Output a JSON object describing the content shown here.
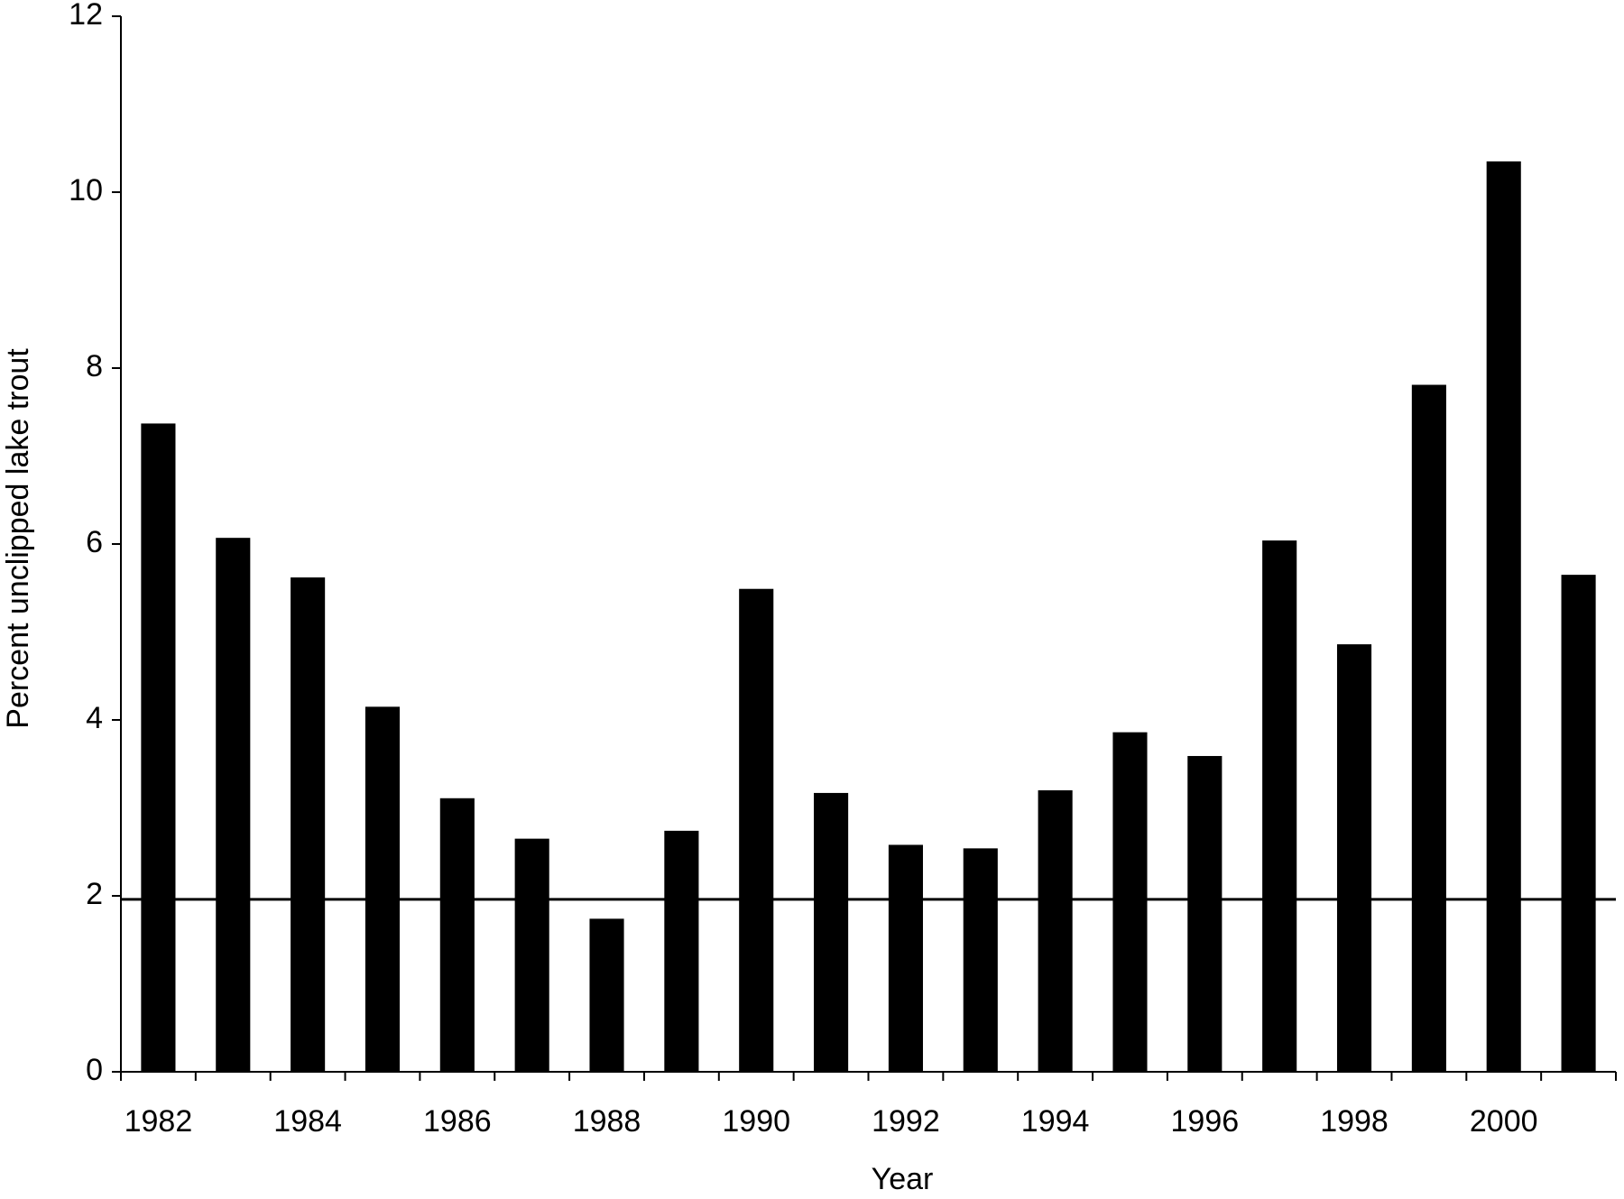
{
  "chart_data": {
    "type": "bar",
    "x_label": "Year",
    "y_label": "Percent unclipped lake trout",
    "categories": [
      "1982",
      null,
      "1984",
      null,
      "1986",
      null,
      "1988",
      null,
      "1990",
      null,
      "1992",
      null,
      "1994",
      null,
      "1996",
      null,
      "1998",
      null,
      "2000",
      null
    ],
    "values": [
      7.37,
      6.07,
      5.62,
      4.15,
      3.11,
      2.65,
      1.74,
      2.74,
      5.49,
      3.17,
      2.58,
      2.54,
      3.2,
      3.86,
      3.59,
      6.04,
      4.86,
      7.81,
      10.35,
      5.65
    ],
    "color": "#000000",
    "reference_line": 1.96,
    "ylim": [
      0,
      12
    ],
    "yticks": [
      0,
      2,
      4,
      6,
      8,
      10,
      12
    ],
    "grid": false
  }
}
